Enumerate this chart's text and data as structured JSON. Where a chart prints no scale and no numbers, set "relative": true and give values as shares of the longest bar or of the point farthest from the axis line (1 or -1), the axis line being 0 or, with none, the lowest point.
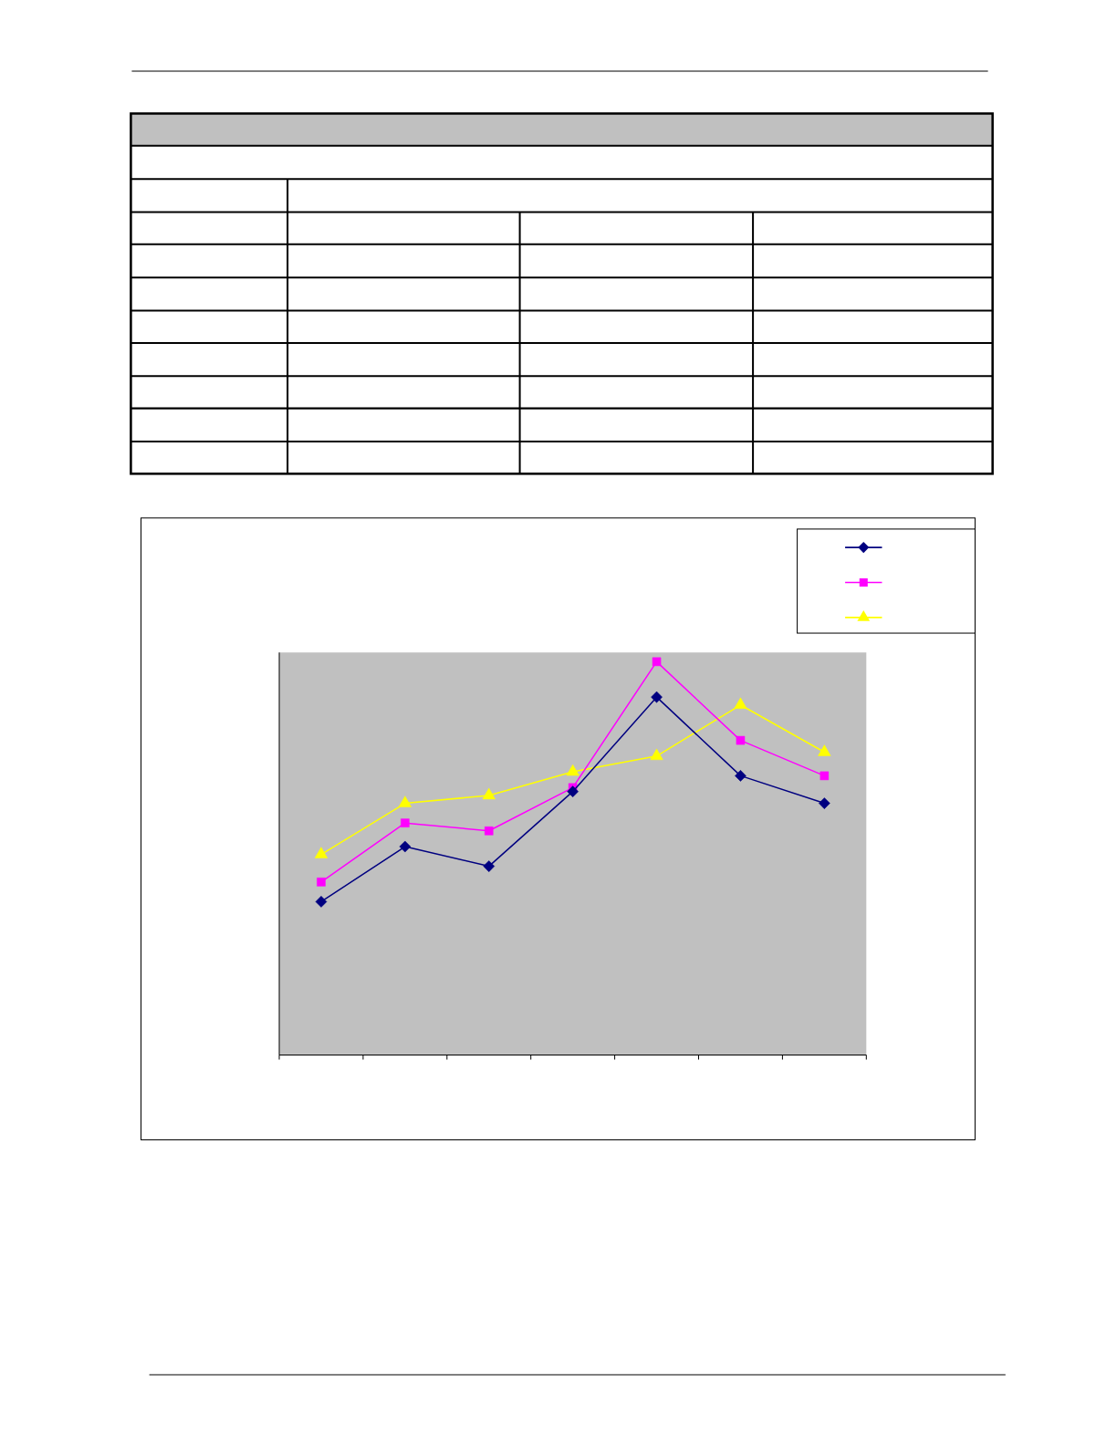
{
  "chart_data": {
    "type": "line",
    "relative": true,
    "categories": [
      null,
      null,
      null,
      null,
      null,
      null,
      null
    ],
    "series": [
      {
        "color": "#000080",
        "marker": "diamond",
        "values": [
          0.39,
          0.53,
          0.48,
          0.67,
          0.91,
          0.71,
          0.64
        ]
      },
      {
        "color": "#ff00ff",
        "marker": "square",
        "values": [
          0.44,
          0.59,
          0.57,
          0.68,
          1,
          0.8,
          0.71
        ]
      },
      {
        "color": "#ffff00",
        "marker": "triangle",
        "values": [
          0.51,
          0.64,
          0.66,
          0.72,
          0.76,
          0.89,
          0.77
        ]
      }
    ]
  }
}
